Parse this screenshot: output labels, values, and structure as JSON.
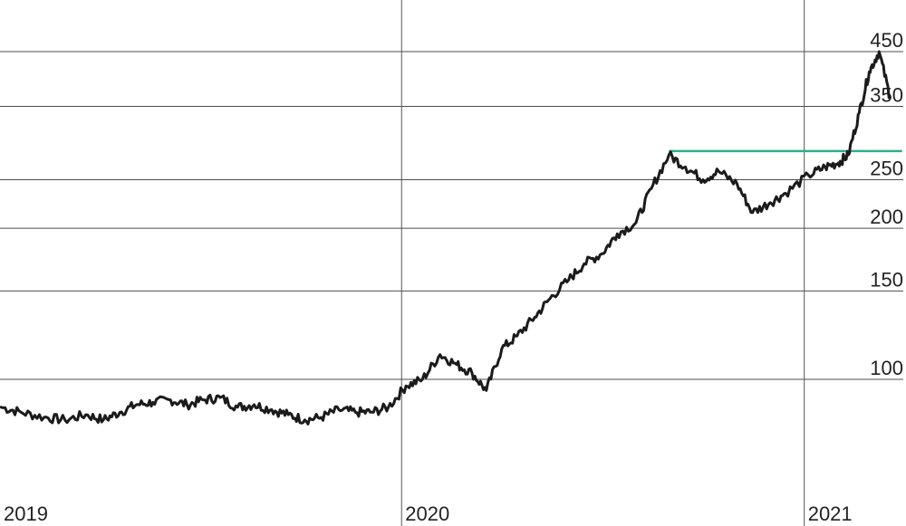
{
  "chart_data": {
    "type": "line",
    "title": "",
    "xlabel": "",
    "ylabel": "",
    "y_scale": "log",
    "ylim": [
      73,
      520
    ],
    "y_ticks": [
      {
        "value": 100,
        "label": "100"
      },
      {
        "value": 150,
        "label": "150"
      },
      {
        "value": 200,
        "label": "200"
      },
      {
        "value": 250,
        "label": "250"
      },
      {
        "value": 350,
        "label": "350"
      },
      {
        "value": 450,
        "label": "450"
      }
    ],
    "x_range": [
      "2019-01-01",
      "2021-04-01"
    ],
    "x_ticks": [
      {
        "value": "2019-01-01",
        "label": "2019"
      },
      {
        "value": "2020-01-01",
        "label": "2020"
      },
      {
        "value": "2021-01-01",
        "label": "2021"
      }
    ],
    "grid": true,
    "colors": {
      "line": "#1b1b1b",
      "reference": "#2fae8e",
      "grid": "#4d4d4d"
    },
    "series": [
      {
        "x": [
          "2019-01-02",
          "2019-01-20",
          "2019-02-10",
          "2019-03-01",
          "2019-03-20",
          "2019-04-05",
          "2019-04-20",
          "2019-05-05",
          "2019-05-20",
          "2019-06-05",
          "2019-06-20",
          "2019-07-05",
          "2019-07-20",
          "2019-08-05",
          "2019-08-20",
          "2019-09-05",
          "2019-09-20",
          "2019-10-05",
          "2019-10-20",
          "2019-11-05",
          "2019-11-20",
          "2019-12-05",
          "2019-12-20",
          "2020-01-05",
          "2020-01-20",
          "2020-02-05",
          "2020-02-20",
          "2020-03-05",
          "2020-03-18",
          "2020-04-01",
          "2020-04-15",
          "2020-05-01",
          "2020-05-15",
          "2020-06-01",
          "2020-06-15",
          "2020-07-01",
          "2020-07-15",
          "2020-08-01",
          "2020-08-15",
          "2020-08-31",
          "2020-09-15",
          "2020-10-01",
          "2020-10-15",
          "2020-11-01",
          "2020-11-15",
          "2020-12-01",
          "2020-12-15",
          "2021-01-05",
          "2021-01-20",
          "2021-02-01",
          "2021-02-10",
          "2021-02-20",
          "2021-03-01",
          "2021-03-10",
          "2021-03-20"
        ],
        "y": [
          88,
          86,
          84,
          83,
          85,
          83,
          86,
          89,
          90,
          91,
          89,
          91,
          92,
          88,
          89,
          87,
          85,
          83,
          84,
          87,
          86,
          86,
          88,
          97,
          100,
          112,
          107,
          103,
          95,
          115,
          122,
          133,
          145,
          158,
          170,
          178,
          195,
          205,
          240,
          280,
          265,
          250,
          260,
          245,
          215,
          225,
          235,
          255,
          265,
          270,
          280,
          340,
          410,
          450,
          365
        ]
      }
    ],
    "reference_line": {
      "value": 285,
      "x_start": "2020-08-31",
      "x_end": "2021-03-31"
    }
  }
}
